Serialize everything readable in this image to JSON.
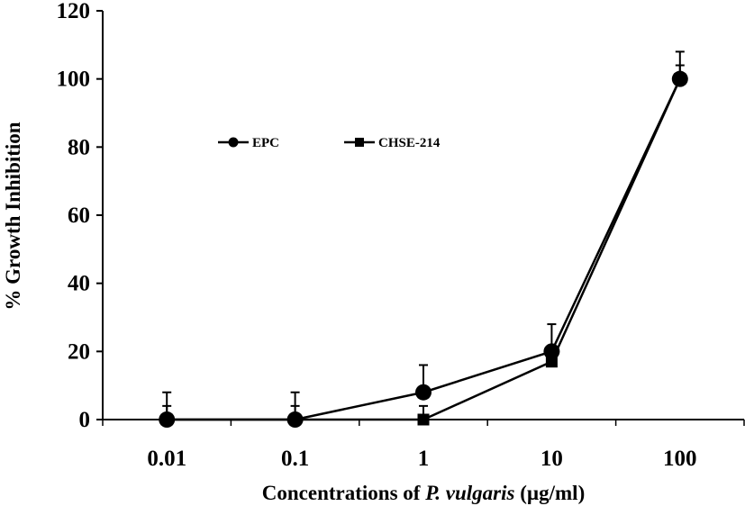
{
  "chart_data": {
    "type": "line",
    "title": "",
    "xlabel": {
      "prefix": "Concentrations of ",
      "italic": "P. vulgaris",
      "suffix": " (µg/ml)"
    },
    "ylabel": "% Growth Inhibition",
    "x_scale": "log",
    "categories": [
      "0.01",
      "0.1",
      "1",
      "10",
      "100"
    ],
    "x": [
      0.01,
      0.1,
      1,
      10,
      100
    ],
    "xlim": [
      0.003162,
      316.2
    ],
    "ylim": [
      0,
      120
    ],
    "yticks": [
      "0",
      "20",
      "40",
      "60",
      "80",
      "100",
      "120"
    ],
    "ytick_values": [
      0,
      20,
      40,
      60,
      80,
      100,
      120
    ],
    "grid": false,
    "legend_position": "top-left",
    "series": [
      {
        "name": "EPC",
        "marker": "circle",
        "values": [
          0,
          0,
          8,
          20,
          100
        ],
        "error": [
          8,
          8,
          8,
          8,
          8
        ]
      },
      {
        "name": "CHSE-214",
        "marker": "square",
        "values": [
          0,
          0,
          0,
          17,
          100
        ],
        "error": [
          4,
          4,
          4,
          0,
          4
        ]
      }
    ],
    "colors": {
      "line": "#000000"
    }
  }
}
